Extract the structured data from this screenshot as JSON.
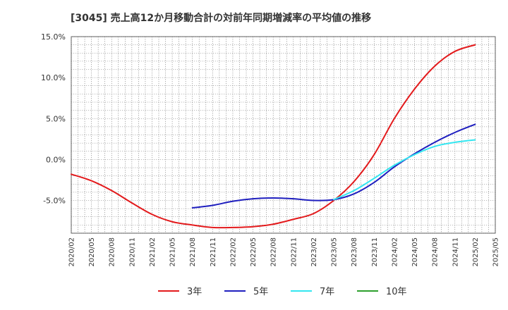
{
  "chart_data": {
    "type": "line",
    "title": "[3045]  売上高12か月移動合計の対前年同期増減率の平均値の推移",
    "xlabel": "",
    "ylabel": "",
    "ylim": [
      -9,
      15
    ],
    "yticks": [
      15,
      10,
      5,
      0,
      -5
    ],
    "ytick_labels": [
      "15.0%",
      "10.0%",
      "5.0%",
      "0.0%",
      "-5.0%"
    ],
    "x_ticks": [
      "2020/02",
      "2020/05",
      "2020/08",
      "2020/11",
      "2021/02",
      "2021/05",
      "2021/08",
      "2021/11",
      "2022/02",
      "2022/05",
      "2022/08",
      "2022/11",
      "2023/02",
      "2023/05",
      "2023/08",
      "2023/11",
      "2024/02",
      "2024/05",
      "2024/08",
      "2024/11",
      "2025/02",
      "2025/05"
    ],
    "x_range": [
      "2020/02",
      "2025/05"
    ],
    "grid": true,
    "legend_position": "bottom",
    "series": [
      {
        "name": "3年",
        "color": "#e31a1c",
        "points": [
          [
            "2020/02",
            -1.8
          ],
          [
            "2020/05",
            -2.6
          ],
          [
            "2020/08",
            -3.8
          ],
          [
            "2020/11",
            -5.3
          ],
          [
            "2021/02",
            -6.7
          ],
          [
            "2021/05",
            -7.6
          ],
          [
            "2021/08",
            -8.0
          ],
          [
            "2021/11",
            -8.3
          ],
          [
            "2022/02",
            -8.3
          ],
          [
            "2022/05",
            -8.2
          ],
          [
            "2022/08",
            -7.9
          ],
          [
            "2022/11",
            -7.3
          ],
          [
            "2023/02",
            -6.6
          ],
          [
            "2023/05",
            -5.0
          ],
          [
            "2023/08",
            -2.7
          ],
          [
            "2023/11",
            0.6
          ],
          [
            "2024/02",
            5.0
          ],
          [
            "2024/05",
            8.6
          ],
          [
            "2024/08",
            11.4
          ],
          [
            "2024/11",
            13.2
          ],
          [
            "2025/02",
            14.0
          ]
        ]
      },
      {
        "name": "5年",
        "color": "#1f1fbf",
        "points": [
          [
            "2021/08",
            -5.9
          ],
          [
            "2021/11",
            -5.6
          ],
          [
            "2022/02",
            -5.1
          ],
          [
            "2022/05",
            -4.8
          ],
          [
            "2022/08",
            -4.7
          ],
          [
            "2022/11",
            -4.8
          ],
          [
            "2023/02",
            -5.0
          ],
          [
            "2023/05",
            -4.9
          ],
          [
            "2023/08",
            -4.2
          ],
          [
            "2023/11",
            -2.8
          ],
          [
            "2024/02",
            -0.9
          ],
          [
            "2024/05",
            0.7
          ],
          [
            "2024/08",
            2.1
          ],
          [
            "2024/11",
            3.3
          ],
          [
            "2025/02",
            4.3
          ]
        ]
      },
      {
        "name": "7年",
        "color": "#33e6f0",
        "points": [
          [
            "2023/05",
            -4.9
          ],
          [
            "2023/08",
            -3.8
          ],
          [
            "2023/11",
            -2.3
          ],
          [
            "2024/02",
            -0.7
          ],
          [
            "2024/05",
            0.6
          ],
          [
            "2024/08",
            1.6
          ],
          [
            "2024/11",
            2.1
          ],
          [
            "2025/02",
            2.4
          ]
        ]
      },
      {
        "name": "10年",
        "color": "#2ca02c",
        "points": []
      }
    ]
  }
}
